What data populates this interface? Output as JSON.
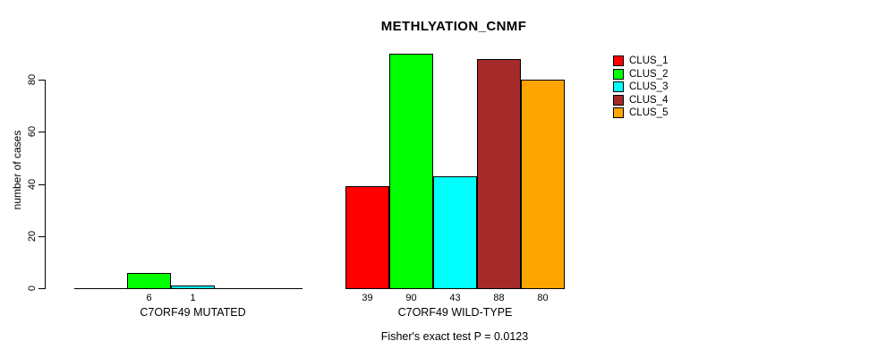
{
  "chart_data": {
    "type": "bar",
    "title": "METHLYATION_CNMF",
    "ylabel": "number of cases",
    "xlabel": "",
    "ylim": [
      0,
      90
    ],
    "yticks": [
      0,
      20,
      40,
      60,
      80
    ],
    "grid": false,
    "legend_position": "right",
    "categories": [
      "C7ORF49 MUTATED",
      "C7ORF49 WILD-TYPE"
    ],
    "series": [
      {
        "name": "CLUS_1",
        "color": "#FF0000",
        "values": [
          0,
          39
        ]
      },
      {
        "name": "CLUS_2",
        "color": "#00FF00",
        "values": [
          6,
          90
        ]
      },
      {
        "name": "CLUS_3",
        "color": "#00FFFF",
        "values": [
          1,
          43
        ]
      },
      {
        "name": "CLUS_4",
        "color": "#A52A2A",
        "values": [
          0,
          88
        ]
      },
      {
        "name": "CLUS_5",
        "color": "#FFA500",
        "values": [
          0,
          80
        ]
      }
    ],
    "bar_value_labels_shown": true,
    "footer": "Fisher's exact test P = 0.0123",
    "axis_color": "#000000",
    "background_color": "#FFFFFF"
  }
}
